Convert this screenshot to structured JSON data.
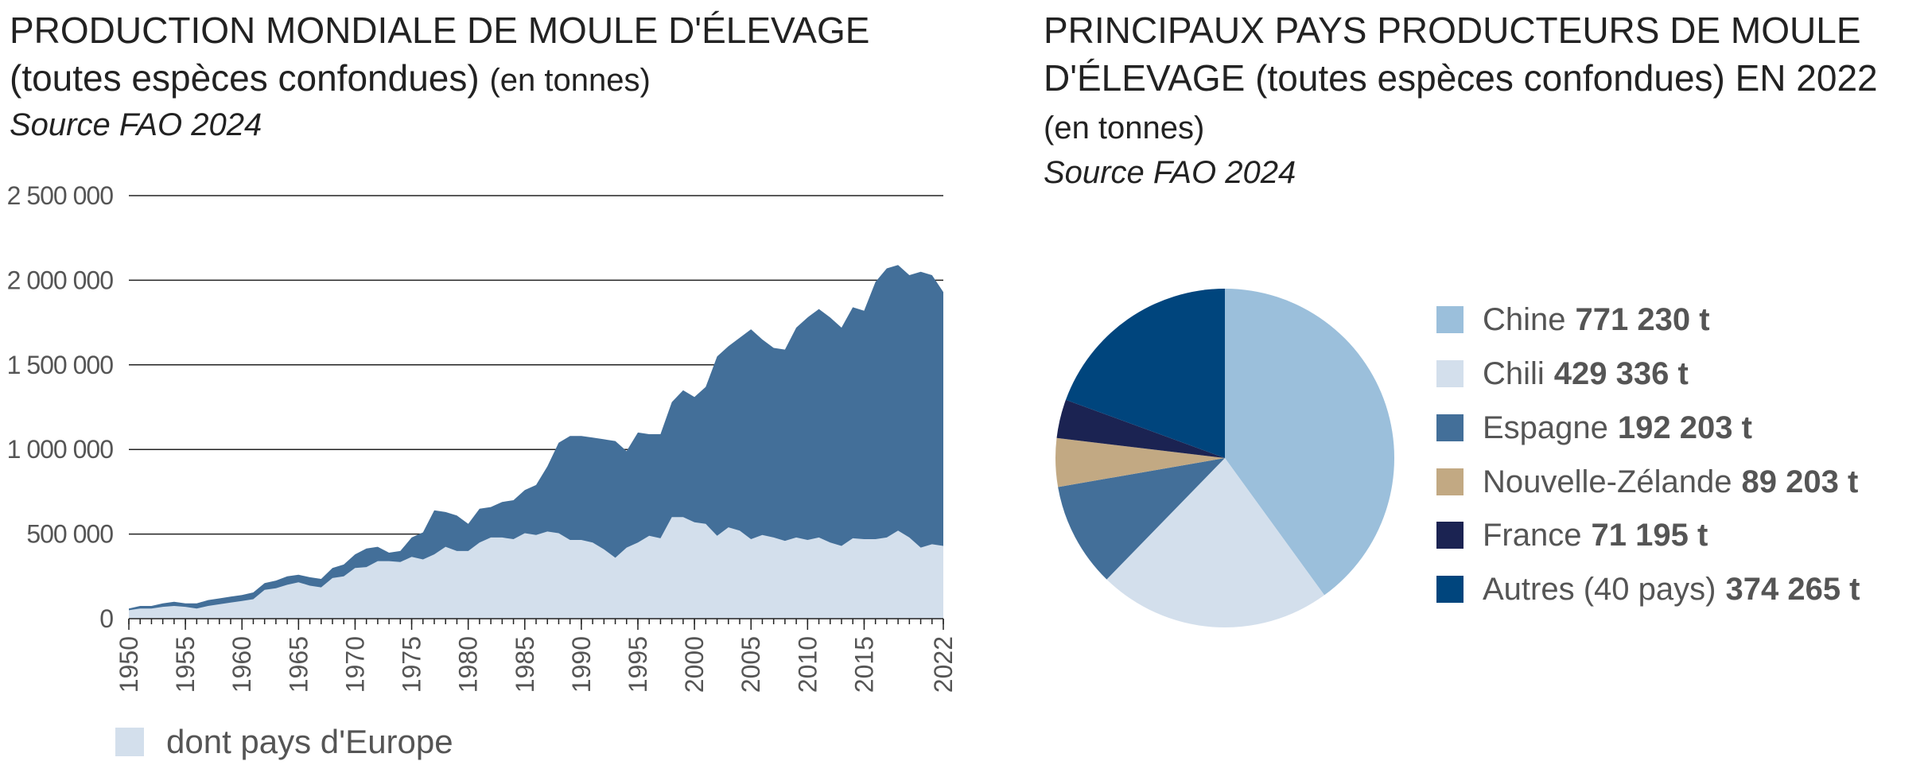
{
  "left": {
    "title_line1": "PRODUCTION MONDIALE DE MOULE D'ÉLEVAGE",
    "title_line2_main": "(toutes espèces confondues)",
    "title_line2_small": "(en tonnes)",
    "source": "Source FAO 2024",
    "legend_label": "dont pays d'Europe"
  },
  "right": {
    "title_line1": "PRINCIPAUX PAYS PRODUCTEURS DE MOULE",
    "title_line2": "D'ÉLEVAGE (toutes espèces confondues) EN 2022",
    "title_line3": "(en tonnes)",
    "source": "Source FAO 2024"
  },
  "colors": {
    "world": "#436f99",
    "europe": "#d3dfec",
    "grid": "#222222"
  },
  "chart_data": [
    {
      "type": "area",
      "title": "PRODUCTION MONDIALE DE MOULE D'ÉLEVAGE (toutes espèces confondues) (en tonnes)",
      "ylim": [
        0,
        2500000
      ],
      "xlim": [
        1950,
        2022
      ],
      "yticks": [
        0,
        500000,
        1000000,
        1500000,
        2000000,
        2500000
      ],
      "ytick_labels": [
        "0",
        "500 000",
        "1 000 000",
        "1 500 000",
        "2 000 000",
        "2 500 000"
      ],
      "xticks": [
        1950,
        1955,
        1960,
        1965,
        1970,
        1975,
        1980,
        1985,
        1990,
        1995,
        2000,
        2005,
        2010,
        2015,
        2022
      ],
      "xtick_labels": [
        "1950",
        "1955",
        "1960",
        "1965",
        "1970",
        "1975",
        "1980",
        "1985",
        "1990",
        "1995",
        "2000",
        "2005",
        "2010",
        "2015",
        "2022"
      ],
      "x": [
        1950,
        1951,
        1952,
        1953,
        1954,
        1955,
        1956,
        1957,
        1958,
        1959,
        1960,
        1961,
        1962,
        1963,
        1964,
        1965,
        1966,
        1967,
        1968,
        1969,
        1970,
        1971,
        1972,
        1973,
        1974,
        1975,
        1976,
        1977,
        1978,
        1979,
        1980,
        1981,
        1982,
        1983,
        1984,
        1985,
        1986,
        1987,
        1988,
        1989,
        1990,
        1991,
        1992,
        1993,
        1994,
        1995,
        1996,
        1997,
        1998,
        1999,
        2000,
        2001,
        2002,
        2003,
        2004,
        2005,
        2006,
        2007,
        2008,
        2009,
        2010,
        2011,
        2012,
        2013,
        2014,
        2015,
        2016,
        2017,
        2018,
        2019,
        2020,
        2021,
        2022
      ],
      "series": [
        {
          "values": [
            60000,
            75000,
            75000,
            90000,
            100000,
            90000,
            90000,
            110000,
            120000,
            130000,
            140000,
            155000,
            210000,
            225000,
            250000,
            260000,
            245000,
            235000,
            300000,
            320000,
            380000,
            415000,
            425000,
            390000,
            400000,
            480000,
            510000,
            640000,
            630000,
            610000,
            560000,
            650000,
            660000,
            690000,
            700000,
            760000,
            790000,
            900000,
            1040000,
            1080000,
            1080000,
            1070000,
            1060000,
            1050000,
            990000,
            1100000,
            1090000,
            1090000,
            1280000,
            1350000,
            1310000,
            1370000,
            1550000,
            1610000,
            1660000,
            1710000,
            1650000,
            1600000,
            1590000,
            1720000,
            1780000,
            1830000,
            1780000,
            1720000,
            1840000,
            1820000,
            1990000,
            2070000,
            2090000,
            2030000,
            2050000,
            2030000,
            1930000
          ]
        },
        {
          "name": "dont pays d'Europe",
          "values": [
            50000,
            60000,
            60000,
            70000,
            75000,
            70000,
            60000,
            75000,
            85000,
            95000,
            105000,
            115000,
            170000,
            180000,
            200000,
            215000,
            195000,
            185000,
            240000,
            250000,
            300000,
            305000,
            340000,
            340000,
            335000,
            365000,
            350000,
            380000,
            425000,
            400000,
            400000,
            450000,
            480000,
            480000,
            470000,
            505000,
            495000,
            515000,
            505000,
            465000,
            465000,
            450000,
            410000,
            360000,
            420000,
            450000,
            490000,
            475000,
            600000,
            600000,
            570000,
            560000,
            490000,
            540000,
            520000,
            470000,
            495000,
            480000,
            460000,
            480000,
            465000,
            480000,
            450000,
            430000,
            475000,
            470000,
            470000,
            480000,
            520000,
            480000,
            420000,
            440000,
            430000
          ]
        }
      ]
    },
    {
      "type": "pie",
      "title": "PRINCIPAUX PAYS PRODUCTEURS DE MOULE D'ÉLEVAGE (toutes espèces confondues) EN 2022 (en tonnes)",
      "categories": [
        "Chine",
        "Chili",
        "Espagne",
        "Nouvelle-Zélande",
        "France",
        "Autres (40 pays)"
      ],
      "values": [
        771230,
        429336,
        192203,
        89203,
        71195,
        374265
      ],
      "value_labels": [
        "771 230 t",
        "429 336 t",
        "192 203 t",
        "89 203 t",
        "71 195 t",
        "374 265 t"
      ],
      "colors": [
        "#9bbfdb",
        "#d3dfec",
        "#436f99",
        "#c2a983",
        "#1b2352",
        "#00457d"
      ],
      "legend_position": "right"
    }
  ]
}
